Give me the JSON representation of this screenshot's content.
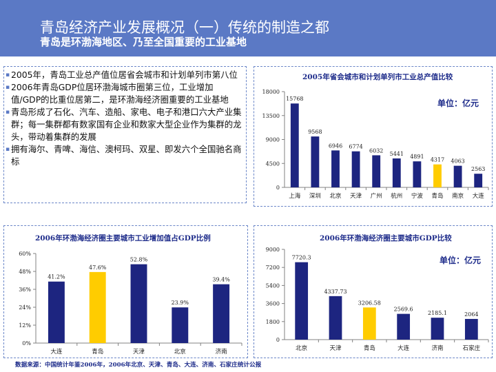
{
  "header": {
    "title": "青岛经济产业发展概况（一）传统的制造之都",
    "subtitle": "青岛是环渤海地区、乃至全国重要的工业基地"
  },
  "bullets": [
    "2005年，青岛工业总产值位居省会城市和计划单列市第八位",
    "2006年青岛GDP位居环渤海城市圈第三位，工业增加值/GDP的比重位居第二，是环渤海经济圈重要的工业基地",
    "青岛形成了石化、汽车、造船、家电、电子和港口六大产业集群；每一集群都有数家国有企业和数家大型企业作为集群的龙头，带动着集群的发展",
    "拥有海尔、青啤、海信、澳柯玛、双星、即发六个全国驰名商标"
  ],
  "colors": {
    "header": "#5b79c5",
    "bar": "#1d2580",
    "highlight": "#ffcc00",
    "title": "#1d2b8a"
  },
  "chart_data": [
    {
      "type": "bar",
      "title": "2005年省会城市和计划单列市工业总产值比较",
      "unit": "单位：亿元",
      "categories": [
        "上海",
        "深圳",
        "北京",
        "天津",
        "广州",
        "杭州",
        "宁波",
        "青岛",
        "南京",
        "大连"
      ],
      "values": [
        15768,
        9568,
        6946,
        6774,
        6032,
        5441,
        4891,
        4317,
        4063,
        2563
      ],
      "value_labels": [
        "15768",
        "9568",
        "6946",
        "6774",
        "6032",
        "5441",
        "4891",
        "4317",
        "4063",
        "2563"
      ],
      "highlight": "青岛",
      "ylim": [
        0,
        18000
      ],
      "yticks": [
        "0",
        "4500",
        "9000",
        "13500",
        "18000"
      ],
      "ytick_values": [
        0,
        4500,
        9000,
        13500,
        18000
      ],
      "grid": false,
      "legend": "none"
    },
    {
      "type": "bar",
      "title": "2006年环渤海经济圈主要城市工业增加值占GDP比例",
      "categories": [
        "大连",
        "青岛",
        "天津",
        "北京",
        "济南"
      ],
      "values": [
        41.2,
        47.6,
        52.8,
        23.9,
        39.4
      ],
      "value_labels": [
        "41.2%",
        "47.6%",
        "52.8%",
        "23.9%",
        "39.4%"
      ],
      "highlight": "青岛",
      "ylim": [
        0,
        60
      ],
      "yticks": [
        "0%",
        "12%",
        "24%",
        "36%",
        "48%",
        "60%"
      ],
      "ytick_values": [
        0,
        12,
        24,
        36,
        48,
        60
      ],
      "grid": false,
      "legend": "none"
    },
    {
      "type": "bar",
      "title": "2006年环渤海经济圈主要城市GDP比较",
      "unit": "单位：亿元",
      "categories": [
        "北京",
        "天津",
        "青岛",
        "大连",
        "济南",
        "石家庄"
      ],
      "values": [
        7720.3,
        4337.73,
        3206.58,
        2569.6,
        2185.1,
        2064
      ],
      "value_labels": [
        "7720.3",
        "4337.73",
        "3206.58",
        "2569.6",
        "2185.1",
        "2064"
      ],
      "highlight": "青岛",
      "ylim": [
        0,
        9000
      ],
      "yticks": [
        "0",
        "1800",
        "3600",
        "5400",
        "7200",
        "9000"
      ],
      "ytick_values": [
        0,
        1800,
        3600,
        5400,
        7200,
        9000
      ],
      "grid": false,
      "legend": "none"
    }
  ],
  "source": "数据来源：中国统计年鉴2006年，2006年北京、天津、青岛、大连、济南、石家庄统计公报"
}
